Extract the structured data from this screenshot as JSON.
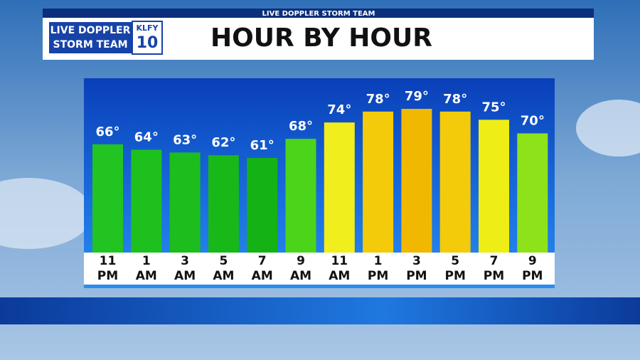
{
  "header": {
    "strip": "LIVE DOPPLER STORM TEAM",
    "logo_line1": "LIVE DOPPLER",
    "logo_line2": "STORM TEAM",
    "station": "KLFY",
    "channel": "10"
  },
  "chart_data": {
    "type": "bar",
    "title": "HOUR BY HOUR",
    "categories": [
      [
        "11",
        "PM"
      ],
      [
        "1",
        "AM"
      ],
      [
        "3",
        "AM"
      ],
      [
        "5",
        "AM"
      ],
      [
        "7",
        "AM"
      ],
      [
        "9",
        "AM"
      ],
      [
        "11",
        "AM"
      ],
      [
        "1",
        "PM"
      ],
      [
        "3",
        "PM"
      ],
      [
        "5",
        "PM"
      ],
      [
        "7",
        "PM"
      ],
      [
        "9",
        "PM"
      ]
    ],
    "values": [
      66,
      64,
      63,
      62,
      61,
      68,
      74,
      78,
      79,
      78,
      75,
      70
    ],
    "value_labels": [
      "66°",
      "64°",
      "63°",
      "62°",
      "61°",
      "68°",
      "74°",
      "78°",
      "79°",
      "78°",
      "75°",
      "70°"
    ],
    "colors": [
      "#22c422",
      "#1ec01e",
      "#1cbd1c",
      "#18b818",
      "#14b214",
      "#4cd41a",
      "#f0ee1c",
      "#f3cb0a",
      "#f0b800",
      "#f3cb0a",
      "#eeee16",
      "#8ee21a"
    ]
  }
}
